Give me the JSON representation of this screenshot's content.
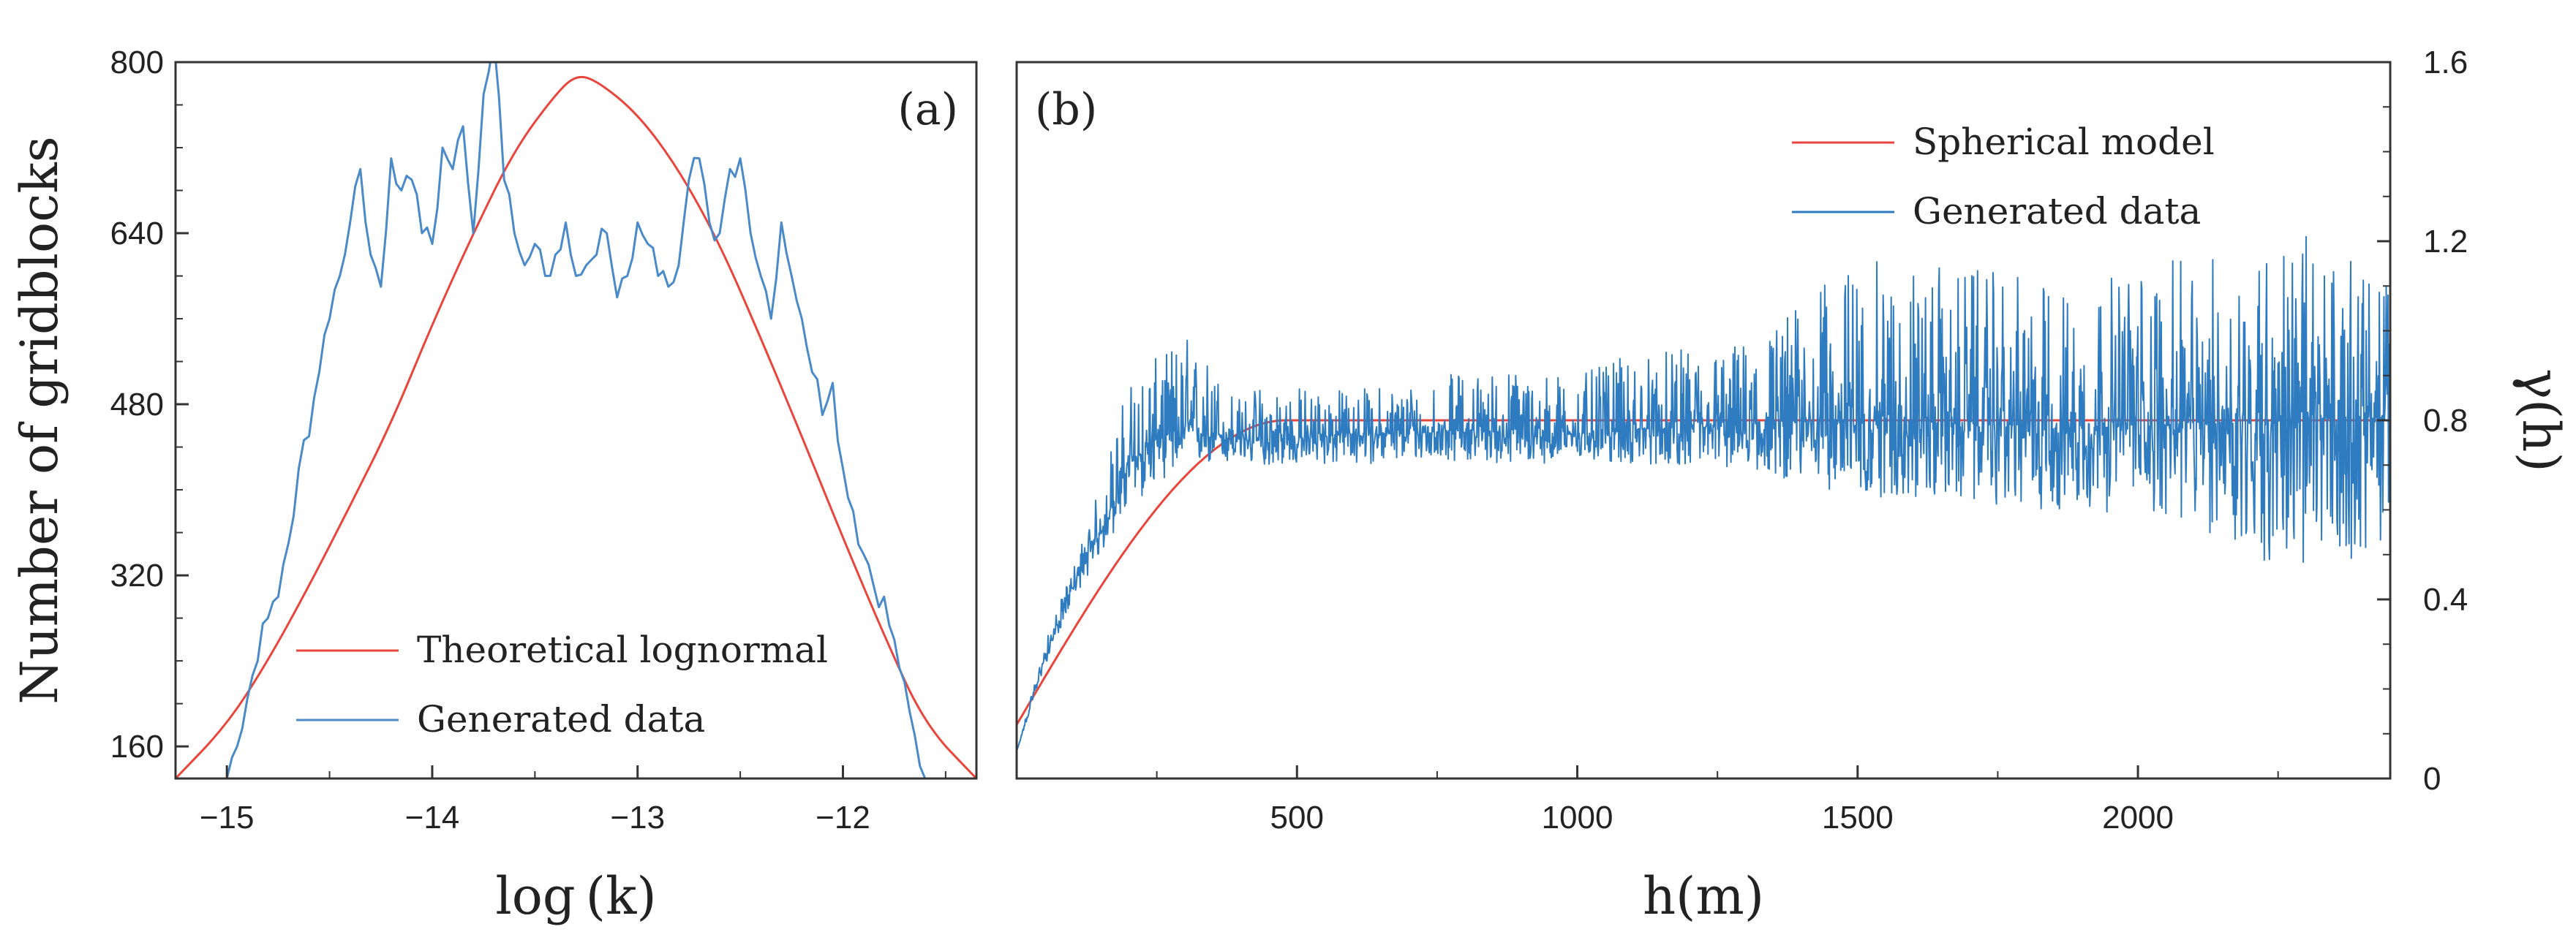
{
  "chart_data": [
    {
      "panel_label": "(a)",
      "type": "line",
      "xlabel": "log (k)",
      "ylabel": "Number of gridblocks",
      "xlim": [
        -15.25,
        -11.35
      ],
      "ylim": [
        130,
        800
      ],
      "xticks": [
        -15,
        -14,
        -13,
        -12
      ],
      "xtick_labels": [
        "−15",
        "−14",
        "−13",
        "−12"
      ],
      "yticks": [
        160,
        320,
        480,
        640,
        800
      ],
      "ytick_labels": [
        "160",
        "320",
        "480",
        "640",
        "800"
      ],
      "grid": false,
      "legend_position": "bottom-left",
      "series": [
        {
          "name": "Theoretical lognormal",
          "color": "#e8453c",
          "x": [
            -15.25,
            -15.0,
            -14.8,
            -14.6,
            -14.4,
            -14.2,
            -14.0,
            -13.8,
            -13.6,
            -13.4,
            -13.3,
            -13.2,
            -13.0,
            -12.8,
            -12.6,
            -12.4,
            -12.2,
            -12.0,
            -11.8,
            -11.6,
            -11.35
          ],
          "y": [
            130,
            180,
            240,
            310,
            385,
            462,
            555,
            640,
            718,
            770,
            788,
            783,
            752,
            700,
            630,
            542,
            450,
            355,
            264,
            180,
            130
          ]
        },
        {
          "name": "Generated data",
          "color": "#4a8ac8",
          "x": [
            -15.0,
            -14.95,
            -14.9,
            -14.85,
            -14.8,
            -14.75,
            -14.7,
            -14.65,
            -14.6,
            -14.55,
            -14.5,
            -14.45,
            -14.4,
            -14.35,
            -14.3,
            -14.25,
            -14.2,
            -14.15,
            -14.1,
            -14.05,
            -14.0,
            -13.95,
            -13.9,
            -13.85,
            -13.8,
            -13.75,
            -13.7,
            -13.65,
            -13.6,
            -13.55,
            -13.5,
            -13.45,
            -13.4,
            -13.35,
            -13.3,
            -13.25,
            -13.2,
            -13.15,
            -13.1,
            -13.05,
            -13.0,
            -12.95,
            -12.9,
            -12.85,
            -12.8,
            -12.75,
            -12.7,
            -12.65,
            -12.6,
            -12.55,
            -12.5,
            -12.45,
            -12.4,
            -12.35,
            -12.3,
            -12.25,
            -12.2,
            -12.15,
            -12.1,
            -12.05,
            -12.0,
            -11.95,
            -11.9,
            -11.85,
            -11.8,
            -11.75,
            -11.7,
            -11.65,
            -11.6
          ],
          "y": [
            130,
            160,
            205,
            240,
            280,
            300,
            350,
            420,
            450,
            510,
            560,
            600,
            650,
            700,
            620,
            590,
            710,
            680,
            690,
            640,
            630,
            720,
            700,
            740,
            640,
            770,
            820,
            690,
            640,
            610,
            630,
            600,
            620,
            650,
            600,
            610,
            620,
            640,
            580,
            600,
            650,
            630,
            600,
            590,
            610,
            690,
            710,
            650,
            640,
            700,
            710,
            640,
            600,
            560,
            650,
            600,
            560,
            510,
            470,
            500,
            420,
            380,
            340,
            310,
            300,
            260,
            220,
            170,
            130
          ]
        }
      ]
    },
    {
      "panel_label": "(b)",
      "type": "line",
      "xlabel": "h(m)",
      "ylabel": "γ(h)",
      "xlim": [
        0,
        2450
      ],
      "ylim": [
        0,
        1.6
      ],
      "xticks": [
        500,
        1000,
        1500,
        2000
      ],
      "xtick_labels": [
        "500",
        "1000",
        "1500",
        "2000"
      ],
      "yticks": [
        0,
        0.4,
        0.8,
        1.2,
        1.6
      ],
      "ytick_labels": [
        "0",
        "0.4",
        "0.8",
        "1.2",
        "1.6"
      ],
      "grid": false,
      "legend_position": "top-right",
      "series": [
        {
          "name": "Spherical model",
          "color": "#e8453c",
          "model": "spherical",
          "nugget": 0.12,
          "sill": 0.8,
          "range": 480
        },
        {
          "name": "Generated data",
          "color": "#2f7bbf",
          "x": [
            0,
            50,
            100,
            150,
            200,
            250,
            300,
            350,
            400,
            450,
            500,
            600,
            700,
            800,
            900,
            1000,
            1100,
            1200,
            1300,
            1400,
            1500,
            1600,
            1700,
            1800,
            1900,
            2000,
            2100,
            2200,
            2300,
            2400,
            2450
          ],
          "y": [
            0.06,
            0.27,
            0.43,
            0.55,
            0.7,
            0.76,
            0.78,
            0.77,
            0.76,
            0.75,
            0.76,
            0.77,
            0.77,
            0.78,
            0.77,
            0.77,
            0.78,
            0.78,
            0.79,
            0.8,
            0.8,
            0.8,
            0.79,
            0.79,
            0.78,
            0.79,
            0.79,
            0.8,
            0.8,
            0.81,
            0.8
          ],
          "y_lower": [
            0.06,
            0.25,
            0.4,
            0.5,
            0.6,
            0.66,
            0.7,
            0.7,
            0.7,
            0.7,
            0.7,
            0.7,
            0.71,
            0.71,
            0.7,
            0.71,
            0.7,
            0.7,
            0.69,
            0.66,
            0.63,
            0.62,
            0.62,
            0.6,
            0.59,
            0.6,
            0.56,
            0.49,
            0.45,
            0.5,
            0.52
          ],
          "y_upper": [
            0.06,
            0.3,
            0.47,
            0.66,
            0.9,
            0.94,
            1.0,
            0.93,
            0.85,
            0.9,
            0.88,
            0.87,
            0.89,
            0.91,
            0.92,
            0.9,
            0.95,
            0.96,
            0.98,
            1.07,
            1.16,
            1.15,
            1.14,
            1.12,
            1.1,
            1.15,
            1.16,
            1.19,
            1.22,
            1.14,
            1.12
          ]
        }
      ]
    }
  ]
}
